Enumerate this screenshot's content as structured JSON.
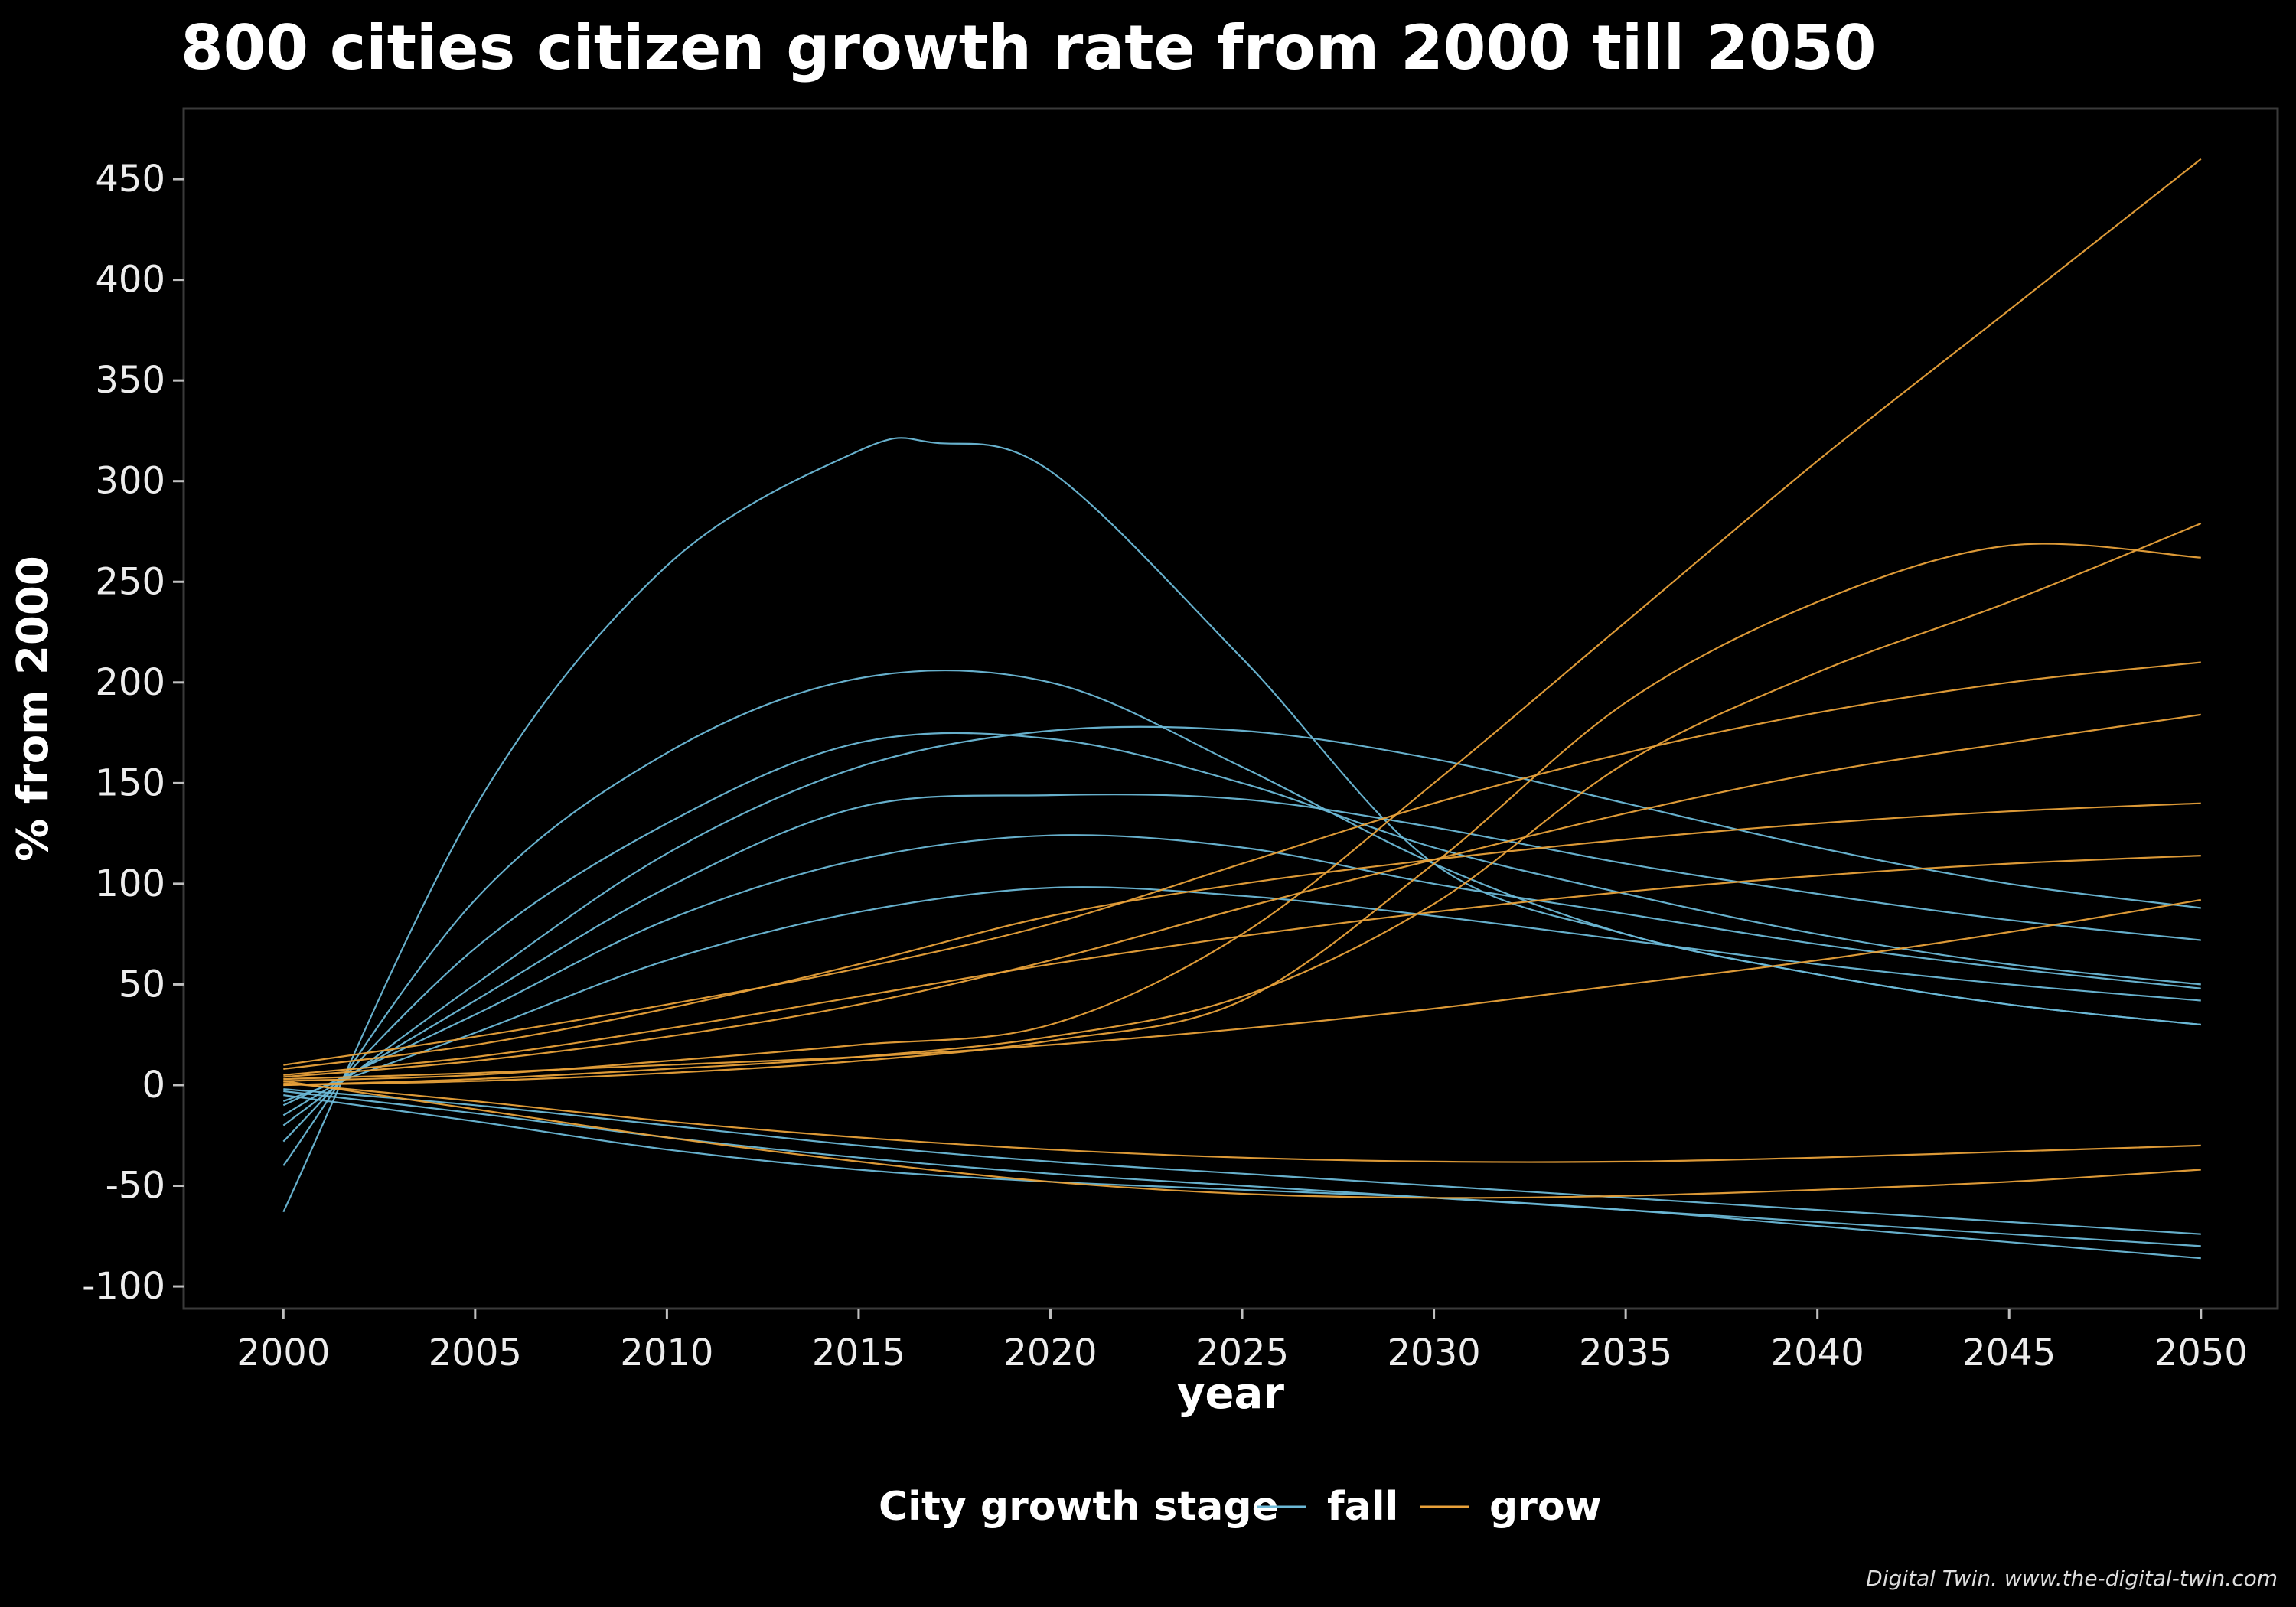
{
  "colors": {
    "background": "#000000",
    "panel_border": "#3a3a3a",
    "fall": "#6cb8d6",
    "grow": "#e8a13a",
    "text": "#ffffff"
  },
  "chart_data": {
    "type": "line",
    "title": "800 cities citizen growth rate from 2000 till 2050",
    "xlabel": "year",
    "ylabel": "% from 2000",
    "xlim": [
      1997.4,
      2052
    ],
    "ylim": [
      -111,
      485
    ],
    "x_ticks": [
      2000,
      2005,
      2010,
      2015,
      2020,
      2025,
      2030,
      2035,
      2040,
      2045,
      2050
    ],
    "y_ticks": [
      -100,
      -50,
      0,
      50,
      100,
      150,
      200,
      250,
      300,
      350,
      400,
      450
    ],
    "legend": {
      "title": "City growth stage",
      "position": "bottom",
      "entries": [
        "fall",
        "grow"
      ]
    },
    "grid": false,
    "series_count": 800,
    "series": [
      {
        "group": "fall",
        "x": [
          2000,
          2005,
          2010,
          2015,
          2017,
          2020,
          2025,
          2030,
          2035,
          2040,
          2045,
          2050
        ],
        "y": [
          -63,
          138,
          258,
          315,
          319,
          305,
          212,
          110,
          75,
          55,
          40,
          30
        ]
      },
      {
        "group": "fall",
        "x": [
          2000,
          2005,
          2010,
          2015,
          2020,
          2025,
          2030,
          2035,
          2040,
          2045,
          2050
        ],
        "y": [
          -40,
          92,
          165,
          202,
          200,
          158,
          110,
          75,
          55,
          40,
          30
        ]
      },
      {
        "group": "fall",
        "x": [
          2000,
          2005,
          2010,
          2015,
          2020,
          2025,
          2030,
          2035,
          2040,
          2045,
          2050
        ],
        "y": [
          -28,
          68,
          130,
          170,
          172,
          150,
          118,
          95,
          75,
          60,
          50
        ]
      },
      {
        "group": "fall",
        "x": [
          2000,
          2005,
          2010,
          2015,
          2020,
          2025,
          2030,
          2035,
          2040,
          2045,
          2050
        ],
        "y": [
          -20,
          50,
          115,
          158,
          176,
          176,
          162,
          140,
          118,
          100,
          88
        ]
      },
      {
        "group": "fall",
        "x": [
          2000,
          2005,
          2010,
          2015,
          2020,
          2025,
          2030,
          2035,
          2040,
          2045,
          2050
        ],
        "y": [
          -15,
          42,
          98,
          138,
          144,
          142,
          128,
          110,
          95,
          82,
          72
        ]
      },
      {
        "group": "fall",
        "x": [
          2000,
          2005,
          2010,
          2015,
          2020,
          2025,
          2030,
          2035,
          2040,
          2045,
          2050
        ],
        "y": [
          -10,
          35,
          82,
          112,
          124,
          118,
          100,
          85,
          70,
          58,
          48
        ]
      },
      {
        "group": "fall",
        "x": [
          2000,
          2005,
          2010,
          2015,
          2020,
          2025,
          2030,
          2035,
          2040,
          2045,
          2050
        ],
        "y": [
          -8,
          26,
          62,
          86,
          98,
          94,
          84,
          72,
          60,
          50,
          42
        ]
      },
      {
        "group": "fall",
        "x": [
          2000,
          2005,
          2010,
          2015,
          2020,
          2025,
          2030,
          2035,
          2040,
          2045,
          2050
        ],
        "y": [
          -5,
          -18,
          -32,
          -42,
          -48,
          -52,
          -56,
          -62,
          -70,
          -78,
          -86
        ]
      },
      {
        "group": "fall",
        "x": [
          2000,
          2005,
          2010,
          2015,
          2020,
          2025,
          2030,
          2035,
          2040,
          2045,
          2050
        ],
        "y": [
          -3,
          -14,
          -26,
          -36,
          -44,
          -50,
          -56,
          -62,
          -68,
          -74,
          -80
        ]
      },
      {
        "group": "fall",
        "x": [
          2000,
          2005,
          2010,
          2015,
          2020,
          2025,
          2030,
          2035,
          2040,
          2045,
          2050
        ],
        "y": [
          -2,
          -10,
          -20,
          -30,
          -38,
          -44,
          -50,
          -56,
          -62,
          -68,
          -74
        ]
      },
      {
        "group": "grow",
        "x": [
          2000,
          2005,
          2010,
          2015,
          2020,
          2025,
          2030,
          2035,
          2040,
          2045,
          2050
        ],
        "y": [
          2,
          5,
          12,
          20,
          30,
          75,
          150,
          230,
          310,
          385,
          460
        ]
      },
      {
        "group": "grow",
        "x": [
          2000,
          2005,
          2010,
          2015,
          2020,
          2025,
          2030,
          2035,
          2040,
          2045,
          2050
        ],
        "y": [
          0,
          2,
          6,
          12,
          22,
          42,
          110,
          190,
          240,
          268,
          262
        ]
      },
      {
        "group": "grow",
        "x": [
          2000,
          2005,
          2010,
          2015,
          2020,
          2025,
          2030,
          2035,
          2040,
          2045,
          2050
        ],
        "y": [
          0,
          3,
          8,
          14,
          24,
          44,
          90,
          160,
          205,
          240,
          279
        ]
      },
      {
        "group": "grow",
        "x": [
          2000,
          2005,
          2010,
          2015,
          2020,
          2025,
          2030,
          2035,
          2040,
          2045,
          2050
        ],
        "y": [
          10,
          24,
          40,
          58,
          80,
          110,
          140,
          165,
          185,
          200,
          210
        ]
      },
      {
        "group": "grow",
        "x": [
          2000,
          2005,
          2010,
          2015,
          2020,
          2025,
          2030,
          2035,
          2040,
          2045,
          2050
        ],
        "y": [
          4,
          12,
          24,
          40,
          62,
          88,
          112,
          135,
          155,
          170,
          184
        ]
      },
      {
        "group": "grow",
        "x": [
          2000,
          2005,
          2010,
          2015,
          2020,
          2025,
          2030,
          2035,
          2040,
          2045,
          2050
        ],
        "y": [
          8,
          20,
          38,
          60,
          84,
          100,
          112,
          122,
          130,
          136,
          140
        ]
      },
      {
        "group": "grow",
        "x": [
          2000,
          2005,
          2010,
          2015,
          2020,
          2025,
          2030,
          2035,
          2040,
          2045,
          2050
        ],
        "y": [
          5,
          14,
          28,
          44,
          60,
          74,
          86,
          96,
          104,
          110,
          114
        ]
      },
      {
        "group": "grow",
        "x": [
          2000,
          2005,
          2010,
          2015,
          2020,
          2025,
          2030,
          2035,
          2040,
          2045,
          2050
        ],
        "y": [
          3,
          6,
          10,
          14,
          20,
          28,
          38,
          50,
          62,
          76,
          92
        ]
      },
      {
        "group": "grow",
        "x": [
          2000,
          2005,
          2010,
          2015,
          2020,
          2025,
          2030,
          2035,
          2040,
          2045,
          2050
        ],
        "y": [
          2,
          -12,
          -26,
          -38,
          -48,
          -54,
          -56,
          -55,
          -52,
          -48,
          -42
        ]
      },
      {
        "group": "grow",
        "x": [
          2000,
          2005,
          2010,
          2015,
          2020,
          2025,
          2030,
          2035,
          2040,
          2045,
          2050
        ],
        "y": [
          1,
          -8,
          -18,
          -26,
          -32,
          -36,
          -38,
          -38,
          -36,
          -33,
          -30
        ]
      }
    ]
  },
  "caption": "Digital Twin. www.the-digital-twin.com"
}
